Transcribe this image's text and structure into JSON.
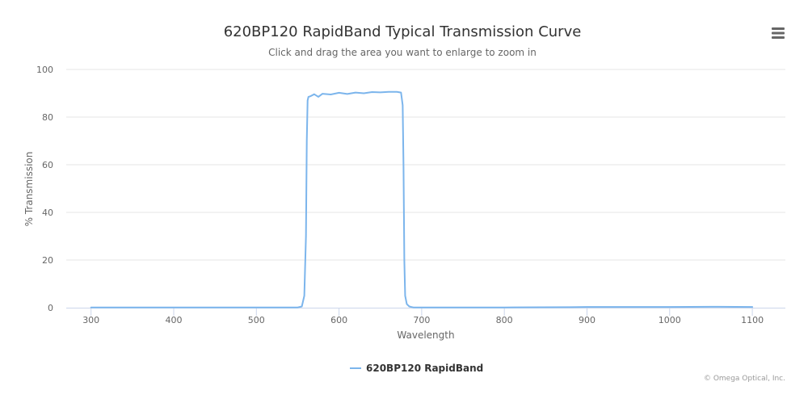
{
  "chart_data": {
    "type": "line",
    "title": "620BP120 RapidBand Typical Transmission Curve",
    "subtitle": "Click and drag the area you want to enlarge to zoom in",
    "xlabel": "Wavelength",
    "ylabel": "% Transmission",
    "xlim": [
      270,
      1140
    ],
    "ylim": [
      0,
      100
    ],
    "x_ticks": [
      300,
      400,
      500,
      600,
      700,
      800,
      900,
      1000,
      1100
    ],
    "y_ticks": [
      0,
      20,
      40,
      60,
      80,
      100
    ],
    "grid": "horizontal",
    "legend_position": "bottom-center",
    "series": [
      {
        "name": "620BP120 RapidBand",
        "color": "#7cb5ec",
        "x": [
          300,
          400,
          500,
          550,
          555,
          558,
          560,
          561,
          562,
          563,
          565,
          570,
          575,
          580,
          590,
          600,
          610,
          620,
          630,
          640,
          650,
          660,
          670,
          675,
          677,
          678,
          679,
          680,
          682,
          685,
          690,
          700,
          800,
          880,
          900,
          1000,
          1050,
          1100
        ],
        "y": [
          0.1,
          0.1,
          0.1,
          0.1,
          0.5,
          5,
          30,
          70,
          87,
          88.5,
          88.7,
          89.6,
          88.5,
          89.8,
          89.5,
          90.2,
          89.7,
          90.3,
          90.0,
          90.5,
          90.4,
          90.6,
          90.6,
          90.3,
          85,
          60,
          20,
          5,
          1.5,
          0.5,
          0.1,
          0.1,
          0.1,
          0.2,
          0.3,
          0.3,
          0.4,
          0.3
        ]
      }
    ]
  },
  "icons": {
    "menu": "hamburger-menu-icon"
  },
  "credits": "© Omega Optical, Inc."
}
